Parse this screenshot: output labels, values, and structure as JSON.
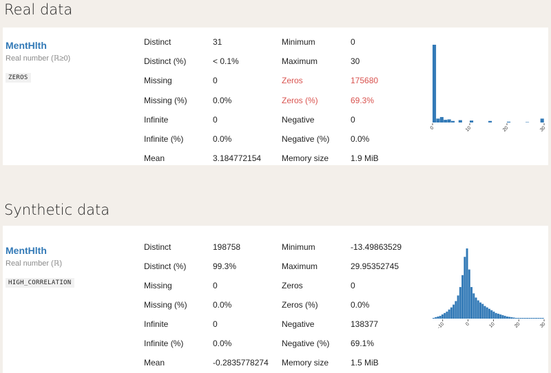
{
  "real": {
    "section_title": "Real data",
    "variable": {
      "name": "MentHlth",
      "type": "Real number (ℝ≥0)",
      "badge": "ZEROS"
    },
    "stats_left": [
      {
        "label": "Distinct",
        "value": "31"
      },
      {
        "label": "Distinct (%)",
        "value": "< 0.1%"
      },
      {
        "label": "Missing",
        "value": "0"
      },
      {
        "label": "Missing (%)",
        "value": "0.0%"
      },
      {
        "label": "Infinite",
        "value": "0"
      },
      {
        "label": "Infinite (%)",
        "value": "0.0%"
      },
      {
        "label": "Mean",
        "value": "3.184772154"
      }
    ],
    "stats_right": [
      {
        "label": "Minimum",
        "value": "0",
        "alert": false
      },
      {
        "label": "Maximum",
        "value": "30",
        "alert": false
      },
      {
        "label": "Zeros",
        "value": "175680",
        "alert": true
      },
      {
        "label": "Zeros (%)",
        "value": "69.3%",
        "alert": true
      },
      {
        "label": "Negative",
        "value": "0",
        "alert": false
      },
      {
        "label": "Negative (%)",
        "value": "0.0%",
        "alert": false
      },
      {
        "label": "Memory size",
        "value": "1.9 MiB",
        "alert": false
      }
    ],
    "chart_data": {
      "type": "bar",
      "bar_color": "#337ab7",
      "xlim": [
        0,
        30
      ],
      "ticks": [
        0,
        10,
        20,
        30
      ],
      "tick_labels": [
        "0",
        "10",
        "20",
        "30"
      ],
      "bin_width": 1,
      "bins": [
        0,
        1,
        2,
        3,
        4,
        5,
        7,
        10,
        15,
        20,
        25,
        29
      ],
      "values": [
        100,
        5,
        7,
        3.5,
        4,
        2,
        3,
        2.5,
        2,
        1,
        0.5,
        5
      ]
    }
  },
  "synthetic": {
    "section_title": "Synthetic data",
    "variable": {
      "name": "MentHlth",
      "type": "Real number (ℝ)",
      "badge": "HIGH_CORRELATION"
    },
    "stats_left": [
      {
        "label": "Distinct",
        "value": "198758"
      },
      {
        "label": "Distinct (%)",
        "value": "99.3%"
      },
      {
        "label": "Missing",
        "value": "0"
      },
      {
        "label": "Missing (%)",
        "value": "0.0%"
      },
      {
        "label": "Infinite",
        "value": "0"
      },
      {
        "label": "Infinite (%)",
        "value": "0.0%"
      },
      {
        "label": "Mean",
        "value": "-0.2835778274"
      }
    ],
    "stats_right": [
      {
        "label": "Minimum",
        "value": "-13.49863529",
        "alert": false
      },
      {
        "label": "Maximum",
        "value": "29.95352745",
        "alert": false
      },
      {
        "label": "Zeros",
        "value": "0",
        "alert": false
      },
      {
        "label": "Zeros (%)",
        "value": "0.0%",
        "alert": false
      },
      {
        "label": "Negative",
        "value": "138377",
        "alert": false
      },
      {
        "label": "Negative (%)",
        "value": "69.1%",
        "alert": false
      },
      {
        "label": "Memory size",
        "value": "1.5 MiB",
        "alert": false
      }
    ],
    "chart_data": {
      "type": "bar",
      "bar_color": "#337ab7",
      "xlim": [
        -14,
        30
      ],
      "ticks": [
        -10,
        0,
        10,
        20,
        30
      ],
      "tick_labels": [
        "-10",
        "0",
        "10",
        "20",
        "30"
      ],
      "bin_width": 0.88,
      "bins": [
        -14,
        -13.12,
        -12.24,
        -11.36,
        -10.48,
        -9.6,
        -8.72,
        -7.84,
        -6.96,
        -6.08,
        -5.2,
        -4.32,
        -3.44,
        -2.56,
        -1.68,
        -0.8,
        0.08,
        0.96,
        1.84,
        2.72,
        3.6,
        4.48,
        5.36,
        6.24,
        7.12,
        8,
        8.88,
        9.76,
        10.64,
        11.52,
        12.4,
        13.28,
        14.16,
        15.04,
        15.92,
        16.8,
        17.68,
        18.56,
        19.44,
        20.32,
        21.2,
        22.08,
        22.96,
        23.84,
        24.72,
        25.6,
        26.48,
        27.36,
        28.24,
        29.12
      ],
      "values": [
        1,
        2,
        3,
        4,
        6,
        8,
        10,
        13,
        16,
        20,
        25,
        33,
        45,
        62,
        88,
        100,
        70,
        45,
        36,
        30,
        26,
        23,
        21,
        18,
        16,
        14,
        12,
        10,
        8,
        7,
        6,
        5,
        4,
        3,
        2.5,
        2,
        1.5,
        1,
        1,
        1,
        1,
        1,
        1,
        1,
        1,
        1,
        1,
        1,
        1,
        1
      ]
    }
  }
}
